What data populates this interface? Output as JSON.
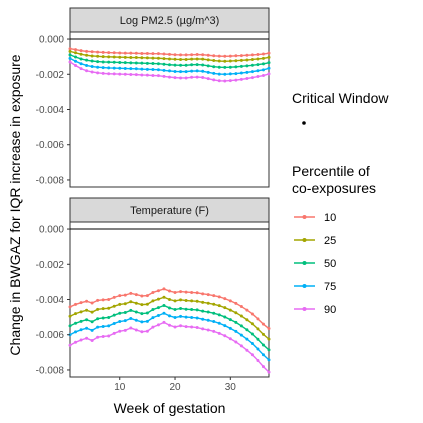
{
  "chart_data": {
    "type": "line",
    "xlabel": "Week of gestation",
    "ylabel": "Change in BWGAZ for IQR increase in exposure",
    "xlim": [
      1,
      37
    ],
    "ylim": [
      -0.0084,
      0.0004
    ],
    "x_ticks": [
      10,
      20,
      30
    ],
    "y_ticks": [
      "0.000",
      "-0.002",
      "-0.004",
      "-0.006",
      "-0.008"
    ],
    "y_tick_values": [
      0,
      -0.002,
      -0.004,
      -0.006,
      -0.008
    ],
    "legend": {
      "critical_window_title": "Critical Window",
      "percentile_title_line1": "Percentile of",
      "percentile_title_line2": "co-exposures"
    },
    "panels": [
      {
        "name": "Log PM2.5 (µg/m^3)",
        "series": [
          {
            "name": "10",
            "color": "#F8766D",
            "values": [
              -0.00055,
              -0.0006,
              -0.00066,
              -0.0007,
              -0.00072,
              -0.00074,
              -0.00076,
              -0.00077,
              -0.00078,
              -0.00079,
              -0.0008,
              -0.0008,
              -0.00081,
              -0.00082,
              -0.00082,
              -0.00083,
              -0.00083,
              -0.00085,
              -0.00087,
              -0.00089,
              -0.0009,
              -0.0009,
              -0.00089,
              -0.00088,
              -0.00089,
              -0.00092,
              -0.00095,
              -0.00097,
              -0.00098,
              -0.00097,
              -0.00095,
              -0.00094,
              -0.00092,
              -0.0009,
              -0.00088,
              -0.00085,
              -0.0008
            ]
          },
          {
            "name": "25",
            "color": "#A3A500",
            "values": [
              -0.0007,
              -0.00078,
              -0.00086,
              -0.00092,
              -0.00096,
              -0.00098,
              -0.001,
              -0.00101,
              -0.00102,
              -0.00103,
              -0.00104,
              -0.00105,
              -0.00105,
              -0.00106,
              -0.00107,
              -0.00108,
              -0.00109,
              -0.00111,
              -0.00113,
              -0.00115,
              -0.00116,
              -0.00116,
              -0.00114,
              -0.00113,
              -0.00114,
              -0.00118,
              -0.00122,
              -0.00125,
              -0.00126,
              -0.00125,
              -0.00123,
              -0.00121,
              -0.00119,
              -0.00116,
              -0.00113,
              -0.0011,
              -0.00104
            ]
          },
          {
            "name": "50",
            "color": "#00BF7D",
            "values": [
              -0.0009,
              -0.00102,
              -0.00113,
              -0.0012,
              -0.00125,
              -0.00128,
              -0.0013,
              -0.00131,
              -0.00132,
              -0.00133,
              -0.00134,
              -0.00135,
              -0.00136,
              -0.00137,
              -0.00138,
              -0.00139,
              -0.0014,
              -0.00143,
              -0.00146,
              -0.00148,
              -0.00149,
              -0.00149,
              -0.00146,
              -0.00145,
              -0.00147,
              -0.00152,
              -0.00157,
              -0.0016,
              -0.00161,
              -0.0016,
              -0.00158,
              -0.00155,
              -0.00152,
              -0.00149,
              -0.00145,
              -0.00141,
              -0.00134
            ]
          },
          {
            "name": "75",
            "color": "#00B0F6",
            "values": [
              -0.0011,
              -0.00126,
              -0.0014,
              -0.0015,
              -0.00156,
              -0.0016,
              -0.00162,
              -0.00164,
              -0.00165,
              -0.00166,
              -0.00167,
              -0.00168,
              -0.00169,
              -0.00171,
              -0.00172,
              -0.00173,
              -0.00174,
              -0.00178,
              -0.00181,
              -0.00184,
              -0.00185,
              -0.00185,
              -0.00182,
              -0.00181,
              -0.00183,
              -0.00189,
              -0.00195,
              -0.00199,
              -0.002,
              -0.00198,
              -0.00196,
              -0.00193,
              -0.00189,
              -0.00185,
              -0.0018,
              -0.00175,
              -0.00166
            ]
          },
          {
            "name": "90",
            "color": "#E76BF3",
            "values": [
              -0.0013,
              -0.0015,
              -0.00168,
              -0.0018,
              -0.00187,
              -0.00192,
              -0.00195,
              -0.00197,
              -0.00198,
              -0.00199,
              -0.002,
              -0.00201,
              -0.00202,
              -0.00204,
              -0.00205,
              -0.00207,
              -0.00208,
              -0.00212,
              -0.00216,
              -0.00219,
              -0.00221,
              -0.00221,
              -0.00217,
              -0.00216,
              -0.00218,
              -0.00225,
              -0.00232,
              -0.00237,
              -0.00238,
              -0.00236,
              -0.00233,
              -0.00229,
              -0.00224,
              -0.00219,
              -0.00213,
              -0.00207,
              -0.00198
            ]
          }
        ]
      },
      {
        "name": "Temperature (F)",
        "series": [
          {
            "name": "10",
            "color": "#F8766D",
            "values": [
              -0.00442,
              -0.00428,
              -0.00418,
              -0.0041,
              -0.0042,
              -0.00405,
              -0.00402,
              -0.004,
              -0.00388,
              -0.00378,
              -0.00375,
              -0.00365,
              -0.00372,
              -0.0038,
              -0.00378,
              -0.0036,
              -0.0035,
              -0.0034,
              -0.00352,
              -0.0036,
              -0.00355,
              -0.00358,
              -0.0036,
              -0.00362,
              -0.00368,
              -0.00372,
              -0.00378,
              -0.00385,
              -0.00395,
              -0.00408,
              -0.00422,
              -0.0044,
              -0.0046,
              -0.00482,
              -0.0051,
              -0.0054,
              -0.00565
            ]
          },
          {
            "name": "25",
            "color": "#A3A500",
            "values": [
              -0.00495,
              -0.0048,
              -0.0047,
              -0.00461,
              -0.00472,
              -0.00456,
              -0.00452,
              -0.0045,
              -0.00438,
              -0.00428,
              -0.00424,
              -0.00413,
              -0.00421,
              -0.00429,
              -0.00427,
              -0.00408,
              -0.00398,
              -0.00387,
              -0.004,
              -0.00408,
              -0.00402,
              -0.00406,
              -0.00408,
              -0.0041,
              -0.00416,
              -0.00421,
              -0.00427,
              -0.00435,
              -0.00446,
              -0.0046,
              -0.00475,
              -0.00494,
              -0.00515,
              -0.00538,
              -0.00567,
              -0.00598,
              -0.00625
            ]
          },
          {
            "name": "50",
            "color": "#00BF7D",
            "values": [
              -0.0055,
              -0.00535,
              -0.00524,
              -0.00515,
              -0.00526,
              -0.00509,
              -0.00505,
              -0.00502,
              -0.00489,
              -0.00478,
              -0.00474,
              -0.00462,
              -0.00471,
              -0.0048,
              -0.00477,
              -0.00457,
              -0.00446,
              -0.00434,
              -0.00448,
              -0.00457,
              -0.00451,
              -0.00455,
              -0.00457,
              -0.00459,
              -0.00466,
              -0.00471,
              -0.00478,
              -0.00487,
              -0.00499,
              -0.00514,
              -0.0053,
              -0.0055,
              -0.00572,
              -0.00596,
              -0.00626,
              -0.00658,
              -0.00686
            ]
          },
          {
            "name": "75",
            "color": "#00B0F6",
            "values": [
              -0.006,
              -0.00584,
              -0.00572,
              -0.00563,
              -0.00575,
              -0.00557,
              -0.00553,
              -0.0055,
              -0.00536,
              -0.00525,
              -0.0052,
              -0.00508,
              -0.00518,
              -0.00527,
              -0.00524,
              -0.00503,
              -0.00491,
              -0.00478,
              -0.00493,
              -0.00502,
              -0.00496,
              -0.005,
              -0.00502,
              -0.00505,
              -0.00512,
              -0.00518,
              -0.00525,
              -0.00535,
              -0.00548,
              -0.00564,
              -0.00581,
              -0.00602,
              -0.00625,
              -0.0065,
              -0.00681,
              -0.00714,
              -0.00743
            ]
          },
          {
            "name": "90",
            "color": "#E76BF3",
            "values": [
              -0.0066,
              -0.00643,
              -0.0063,
              -0.0062,
              -0.00633,
              -0.00614,
              -0.0061,
              -0.00607,
              -0.00592,
              -0.0058,
              -0.00575,
              -0.00562,
              -0.00573,
              -0.00583,
              -0.0058,
              -0.00557,
              -0.00544,
              -0.0053,
              -0.00546,
              -0.00556,
              -0.00549,
              -0.00554,
              -0.00556,
              -0.00559,
              -0.00567,
              -0.00573,
              -0.00581,
              -0.00592,
              -0.00606,
              -0.00623,
              -0.00641,
              -0.00663,
              -0.00688,
              -0.00714,
              -0.00746,
              -0.00781,
              -0.00812
            ]
          }
        ]
      }
    ]
  }
}
